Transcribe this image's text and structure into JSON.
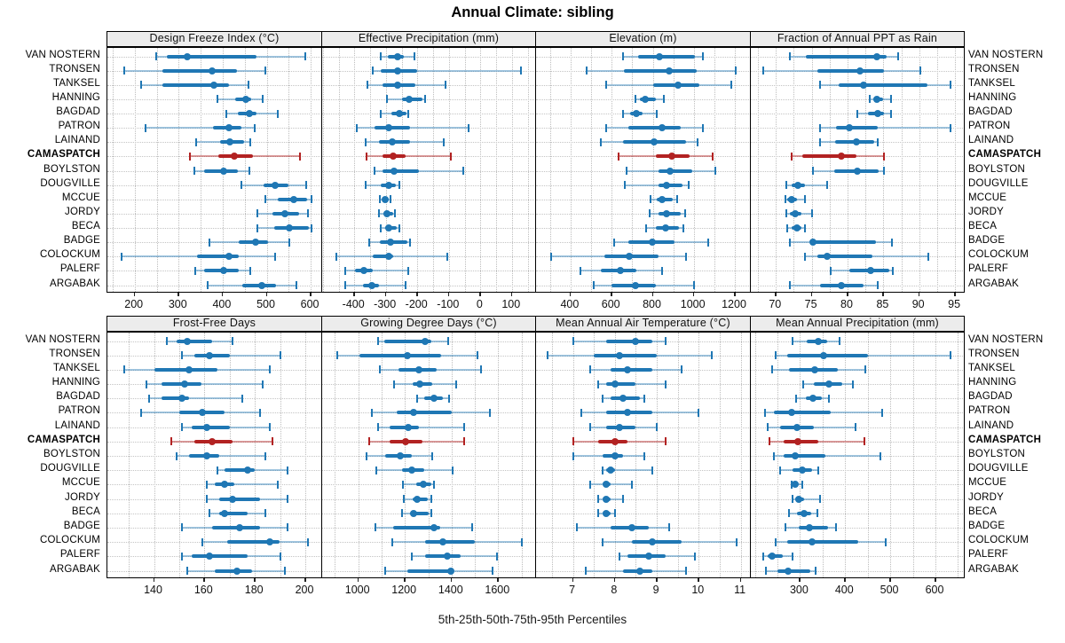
{
  "title": "Annual Climate: sibling",
  "caption": "5th-25th-50th-75th-95th Percentiles",
  "stations": [
    "VAN NOSTERN",
    "TRONSEN",
    "TANKSEL",
    "HANNING",
    "BAGDAD",
    "PATRON",
    "LAINAND",
    "CAMASPATCH",
    "BOYLSTON",
    "DOUGVILLE",
    "MCCUE",
    "JORDY",
    "BECA",
    "BADGE",
    "COLOCKUM",
    "PALERF",
    "ARGABAK"
  ],
  "highlight_station": "CAMASPATCH",
  "colors": {
    "blue": "#1f77b4",
    "blue_light": "rgba(31,119,180,0.42)",
    "red": "#b22222",
    "red_light": "rgba(178,34,34,0.45)",
    "strip_bg": "#ececec",
    "grid": "#c0c0c0"
  },
  "chart_data": [
    {
      "type": "dotplot",
      "title": "Design Freeze Index (°C)",
      "xlim": [
        138,
        622
      ],
      "ticks": [
        200,
        300,
        400,
        500,
        600
      ],
      "minor_step": 50,
      "values": [
        [
          248,
          273,
          320,
          476,
          587
        ],
        [
          177,
          262,
          376,
          432,
          497
        ],
        [
          214,
          262,
          379,
          415,
          458
        ],
        [
          388,
          429,
          452,
          464,
          490
        ],
        [
          408,
          435,
          461,
          476,
          526
        ],
        [
          224,
          378,
          415,
          442,
          473
        ],
        [
          340,
          394,
          416,
          448,
          462
        ],
        [
          325,
          390,
          426,
          469,
          575
        ],
        [
          335,
          357,
          403,
          435,
          461
        ],
        [
          442,
          493,
          519,
          549,
          590
        ],
        [
          497,
          526,
          561,
          592,
          601
        ],
        [
          478,
          512,
          541,
          573,
          594
        ],
        [
          478,
          517,
          551,
          595,
          602
        ],
        [
          369,
          437,
          474,
          503,
          551
        ],
        [
          170,
          342,
          415,
          437,
          519
        ],
        [
          338,
          357,
          403,
          437,
          463
        ],
        [
          365,
          444,
          488,
          522,
          568
        ]
      ]
    },
    {
      "type": "dotplot",
      "title": "Effective Precipitation (mm)",
      "xlim": [
        -502,
        171
      ],
      "ticks": [
        -400,
        -300,
        -200,
        -100,
        0,
        100
      ],
      "minor_step": 50,
      "values": [
        [
          -316,
          -293,
          -262,
          -242,
          -209
        ],
        [
          -342,
          -316,
          -262,
          -200,
          130
        ],
        [
          -358,
          -311,
          -262,
          -206,
          -112
        ],
        [
          -297,
          -248,
          -225,
          -185,
          -175
        ],
        [
          -316,
          -283,
          -256,
          -234,
          -228
        ],
        [
          -393,
          -335,
          -290,
          -224,
          -37
        ],
        [
          -365,
          -321,
          -279,
          -224,
          -116
        ],
        [
          -361,
          -311,
          -277,
          -238,
          -93
        ],
        [
          -337,
          -312,
          -274,
          -195,
          -54
        ],
        [
          -365,
          -316,
          -290,
          -268,
          -258
        ],
        [
          -320,
          -308,
          -301,
          -290,
          -284
        ],
        [
          -321,
          -305,
          -296,
          -278,
          -272
        ],
        [
          -316,
          -303,
          -290,
          -266,
          -258
        ],
        [
          -353,
          -320,
          -285,
          -232,
          -222
        ],
        [
          -458,
          -342,
          -291,
          -277,
          -104
        ],
        [
          -430,
          -398,
          -369,
          -342,
          -228
        ],
        [
          -428,
          -372,
          -345,
          -322,
          -237
        ]
      ]
    },
    {
      "type": "dotplot",
      "title": "Elevation (m)",
      "xlim": [
        232,
        1269
      ],
      "ticks": [
        400,
        600,
        800,
        1000,
        1200
      ],
      "minor_step": 100,
      "values": [
        [
          657,
          729,
          833,
          1007,
          1043
        ],
        [
          479,
          661,
          881,
          1014,
          1204
        ],
        [
          574,
          800,
          924,
          1026,
          1183
        ],
        [
          714,
          739,
          764,
          814,
          853
        ],
        [
          657,
          690,
          719,
          750,
          821
        ],
        [
          571,
          679,
          847,
          936,
          1043
        ],
        [
          547,
          657,
          807,
          964,
          1019
        ],
        [
          633,
          814,
          893,
          979,
          1090
        ],
        [
          671,
          829,
          886,
          993,
          1104
        ],
        [
          664,
          829,
          867,
          943,
          976
        ],
        [
          790,
          819,
          847,
          896,
          919
        ],
        [
          786,
          829,
          867,
          936,
          957
        ],
        [
          767,
          814,
          861,
          929,
          947
        ],
        [
          610,
          679,
          796,
          907,
          1069
        ],
        [
          304,
          564,
          686,
          829,
          961
        ],
        [
          447,
          547,
          643,
          721,
          847
        ],
        [
          514,
          600,
          714,
          814,
          1000
        ]
      ]
    },
    {
      "type": "dotplot",
      "title": "Fraction of Annual PPT as Rain",
      "xlim": [
        66.5,
        96.1
      ],
      "ticks": [
        70,
        75,
        80,
        85,
        90,
        95
      ],
      "minor_step": 2.5,
      "values": [
        [
          72,
          74.2,
          84.1,
          85.4,
          87.1
        ],
        [
          68.2,
          75.8,
          81.7,
          85.1,
          90.1
        ],
        [
          76.1,
          78.8,
          82.2,
          91.1,
          94.3
        ],
        [
          83.1,
          83.6,
          84.1,
          84.9,
          86.1
        ],
        [
          81.3,
          82.9,
          84.2,
          85.1,
          86.1
        ],
        [
          76.1,
          78.4,
          80.3,
          84.2,
          94.3
        ],
        [
          76.2,
          78.2,
          81.2,
          83.7,
          84.2
        ],
        [
          72.2,
          73.7,
          79.1,
          81.3,
          85.1
        ],
        [
          75.2,
          78.1,
          81.3,
          84.3,
          85.1
        ],
        [
          71.5,
          72.2,
          73,
          74.1,
          77.2
        ],
        [
          71.3,
          71.6,
          72.2,
          73,
          74.1
        ],
        [
          71.5,
          72,
          72.7,
          73.6,
          75
        ],
        [
          71.6,
          72.2,
          72.9,
          73.6,
          74.1
        ],
        [
          72,
          74.8,
          75.2,
          84,
          86.2
        ],
        [
          74.1,
          75.8,
          77.2,
          83.5,
          91.3
        ],
        [
          77.7,
          80.2,
          83.2,
          85.8,
          86.3
        ],
        [
          72,
          76.1,
          79.1,
          82.2,
          84.2
        ]
      ]
    },
    {
      "type": "dotplot",
      "title": "Frost-Free Days",
      "xlim": [
        121.5,
        206
      ],
      "ticks": [
        140,
        160,
        180,
        200
      ],
      "minor_step": 10,
      "values": [
        [
          145,
          149,
          153,
          163,
          171
        ],
        [
          151,
          156,
          162,
          170,
          190
        ],
        [
          128,
          140,
          154,
          165,
          186
        ],
        [
          137,
          143,
          152,
          159,
          183
        ],
        [
          138,
          143,
          151,
          154,
          175
        ],
        [
          135,
          150,
          159,
          168,
          182
        ],
        [
          151,
          155,
          161,
          170,
          186
        ],
        [
          147,
          156,
          163,
          171,
          187
        ],
        [
          149,
          154,
          161,
          166,
          184
        ],
        [
          165,
          168,
          177,
          180,
          193
        ],
        [
          161,
          164,
          168,
          172,
          189
        ],
        [
          161,
          166,
          171,
          182,
          193
        ],
        [
          162,
          166,
          168,
          177,
          184
        ],
        [
          151,
          163,
          174,
          182,
          193
        ],
        [
          159,
          169,
          186,
          190,
          201
        ],
        [
          151,
          155,
          162,
          177,
          190
        ],
        [
          153,
          164,
          173,
          179,
          192
        ]
      ]
    },
    {
      "type": "dotplot",
      "title": "Growing Degree Days (°C)",
      "xlim": [
        845,
        1755
      ],
      "ticks": [
        1000,
        1200,
        1400,
        1600
      ],
      "minor_step": 100,
      "values": [
        [
          1086,
          1113,
          1287,
          1314,
          1387
        ],
        [
          909,
          1006,
          1211,
          1355,
          1513
        ],
        [
          1094,
          1174,
          1258,
          1337,
          1526
        ],
        [
          1153,
          1233,
          1262,
          1317,
          1421
        ],
        [
          1254,
          1283,
          1325,
          1362,
          1390
        ],
        [
          1057,
          1166,
          1236,
          1400,
          1564
        ],
        [
          1086,
          1136,
          1216,
          1262,
          1455
        ],
        [
          1048,
          1136,
          1204,
          1274,
          1455
        ],
        [
          1035,
          1116,
          1179,
          1229,
          1317
        ],
        [
          1078,
          1186,
          1229,
          1283,
          1405
        ],
        [
          1191,
          1249,
          1279,
          1312,
          1325
        ],
        [
          1195,
          1233,
          1254,
          1299,
          1312
        ],
        [
          1186,
          1220,
          1236,
          1303,
          1315
        ],
        [
          1073,
          1148,
          1325,
          1350,
          1488
        ],
        [
          1145,
          1287,
          1362,
          1501,
          1702
        ],
        [
          1229,
          1287,
          1380,
          1438,
          1594
        ],
        [
          1116,
          1211,
          1396,
          1410,
          1576
        ]
      ]
    },
    {
      "type": "dotplot",
      "title": "Mean Annual Air Temperature (°C)",
      "xlim": [
        6.12,
        11.2
      ],
      "ticks": [
        7,
        8,
        9,
        10,
        11
      ],
      "minor_step": 0.5,
      "values": [
        [
          7,
          7.8,
          8.5,
          8.9,
          9.2
        ],
        [
          6.4,
          7.5,
          8.1,
          9,
          10.3
        ],
        [
          7.4,
          7.9,
          8.3,
          8.9,
          9.6
        ],
        [
          7.6,
          7.8,
          8,
          8.5,
          9.2
        ],
        [
          7.7,
          7.9,
          8.2,
          8.6,
          8.7
        ],
        [
          7.2,
          7.8,
          8.3,
          8.9,
          10
        ],
        [
          7.4,
          7.8,
          8.1,
          8.5,
          9
        ],
        [
          7,
          7.6,
          8,
          8.3,
          9.2
        ],
        [
          7,
          7.7,
          8,
          8.2,
          8.7
        ],
        [
          7.7,
          7.8,
          7.9,
          8,
          8.9
        ],
        [
          7.4,
          7.7,
          7.8,
          7.9,
          8.4
        ],
        [
          7.6,
          7.7,
          7.8,
          7.9,
          8.2
        ],
        [
          7.6,
          7.7,
          7.8,
          7.9,
          8
        ],
        [
          7.1,
          7.9,
          8.4,
          8.8,
          9.3
        ],
        [
          7.7,
          8.4,
          8.9,
          9.6,
          10.9
        ],
        [
          8.1,
          8.3,
          8.8,
          9.2,
          9.9
        ],
        [
          7.3,
          8.2,
          8.6,
          8.9,
          9.7
        ]
      ]
    },
    {
      "type": "dotplot",
      "title": "Mean Annual Precipitation (mm)",
      "xlim": [
        191,
        661
      ],
      "ticks": [
        300,
        400,
        500,
        600
      ],
      "minor_step": 50,
      "values": [
        [
          284,
          315,
          341,
          361,
          387
        ],
        [
          245,
          272,
          353,
          451,
          633
        ],
        [
          238,
          276,
          333,
          383,
          445
        ],
        [
          307,
          330,
          363,
          394,
          418
        ],
        [
          291,
          313,
          328,
          348,
          363
        ],
        [
          223,
          243,
          281,
          368,
          482
        ],
        [
          228,
          256,
          293,
          330,
          422
        ],
        [
          233,
          263,
          295,
          341,
          443
        ],
        [
          243,
          264,
          289,
          357,
          478
        ],
        [
          256,
          284,
          304,
          326,
          341
        ],
        [
          282,
          285,
          289,
          296,
          305
        ],
        [
          284,
          290,
          297,
          309,
          345
        ],
        [
          276,
          293,
          309,
          324,
          339
        ],
        [
          267,
          297,
          320,
          363,
          379
        ],
        [
          245,
          271,
          326,
          429,
          490
        ],
        [
          218,
          228,
          238,
          261,
          284
        ],
        [
          225,
          249,
          274,
          322,
          335
        ]
      ]
    }
  ]
}
